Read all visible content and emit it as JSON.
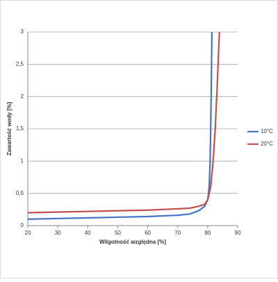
{
  "chart_data": {
    "type": "line",
    "xlabel": "Wilgotność względna [%]",
    "ylabel": "Zawartość wody [%]",
    "xlim": [
      20,
      90
    ],
    "xticks": [
      20,
      30,
      40,
      50,
      60,
      70,
      80,
      90
    ],
    "ylim": [
      0,
      3
    ],
    "yticks": [
      0,
      {
        "value": 0.5,
        "label": "0,5"
      },
      1,
      {
        "value": 1.5,
        "label": "1,5"
      },
      2,
      {
        "value": 2.5,
        "label": "2,5"
      },
      3
    ],
    "grid": true,
    "legend": "right",
    "series": [
      {
        "name": "10°C",
        "color": "#4472c4",
        "x": [
          20,
          30,
          40,
          50,
          60,
          70,
          74,
          77,
          79,
          80,
          80.5,
          80.8,
          81,
          81.2,
          81.4
        ],
        "values": [
          0.1,
          0.11,
          0.12,
          0.13,
          0.14,
          0.16,
          0.18,
          0.23,
          0.3,
          0.4,
          0.6,
          1.0,
          1.5,
          2.2,
          3
        ]
      },
      {
        "name": "20°C",
        "color": "#c0504d",
        "x": [
          20,
          40,
          60,
          70,
          74,
          77,
          79,
          80,
          81,
          81.8,
          82.5,
          83.2,
          83.9
        ],
        "values": [
          0.2,
          0.22,
          0.24,
          0.26,
          0.27,
          0.3,
          0.33,
          0.4,
          0.6,
          1.0,
          1.5,
          2.2,
          3
        ]
      }
    ]
  }
}
